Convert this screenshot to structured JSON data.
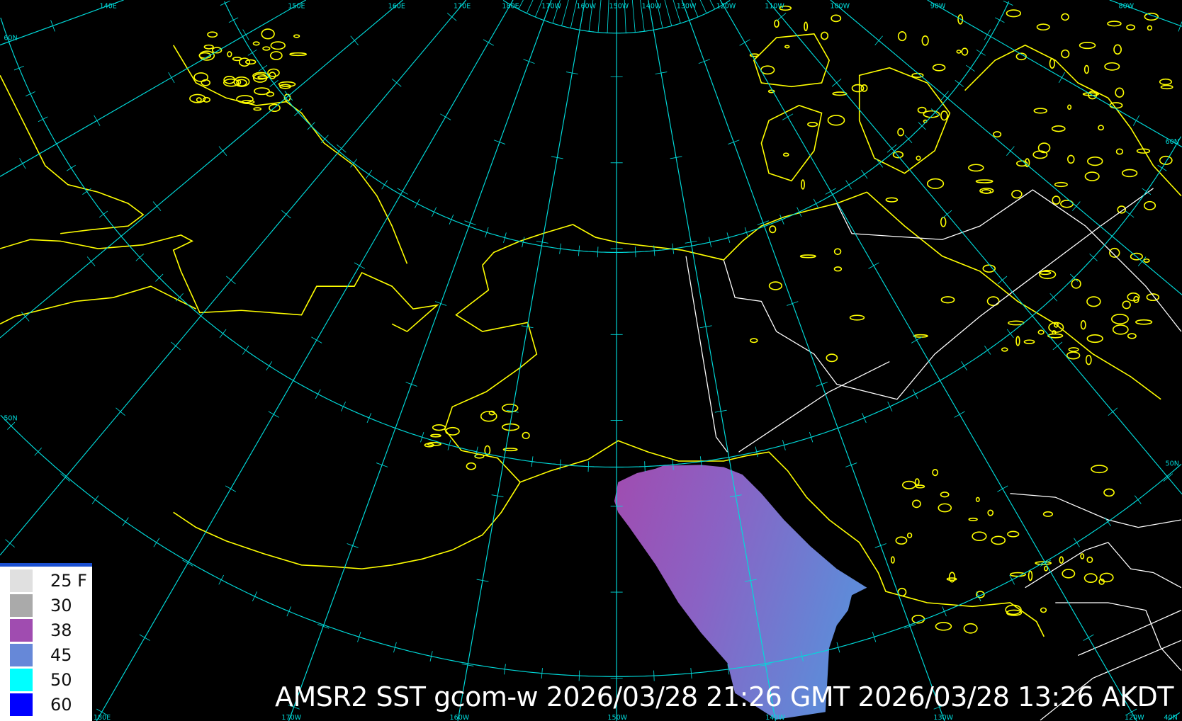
{
  "title": "AMSR2 SST gcom-w 2026/03/28 21:26 GMT 2026/03/28 13:26 AKDT",
  "legend": [
    {
      "label": "25 F",
      "color": "#e0e0e0"
    },
    {
      "label": "30",
      "color": "#aaaaaa"
    },
    {
      "label": "38",
      "color": "#a04cb0"
    },
    {
      "label": "45",
      "color": "#6688d8"
    },
    {
      "label": "50",
      "color": "#00ffff"
    },
    {
      "label": "60",
      "color": "#0000ff"
    }
  ],
  "grid": {
    "top_labels": [
      "140E",
      "150E",
      "160E",
      "170E",
      "180E",
      "170W",
      "160W",
      "150W",
      "140W",
      "130W",
      "120W",
      "110W",
      "100W",
      "90W",
      "80W"
    ],
    "top_lons": [
      140,
      150,
      160,
      170,
      180,
      -170,
      -160,
      -150,
      -140,
      -130,
      -120,
      -110,
      -100,
      -90,
      -80
    ],
    "bottom_labels": [
      "180E",
      "170W",
      "160W",
      "150W",
      "140W",
      "130W",
      "120W"
    ],
    "bottom_lons": [
      180,
      -170,
      -160,
      -150,
      -140,
      -130,
      -120
    ],
    "lat_labels_left": [
      "60N",
      "50N"
    ],
    "lat_labels_right": [
      "60N",
      "50N",
      "40N"
    ]
  },
  "colors": {
    "background": "#000000",
    "graticule": "#00e0e0",
    "coastline": "#ffff00",
    "borders": "#ffffff",
    "sst_warm": "#a04cb0",
    "sst_cool": "#6688d8"
  }
}
